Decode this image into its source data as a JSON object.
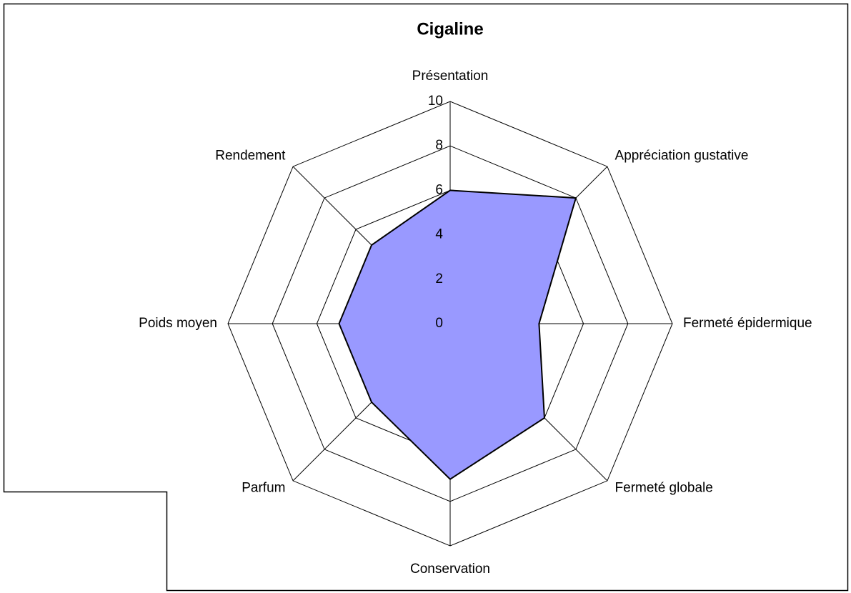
{
  "chart_data": {
    "type": "radar",
    "title": "Cigaline",
    "categories": [
      "Présentation",
      "Appréciation gustative",
      "Fermeté épidermique",
      "Fermeté globale",
      "Conservation",
      "Parfum",
      "Poids moyen",
      "Rendement"
    ],
    "values": [
      6,
      8,
      4,
      6,
      7,
      5,
      5,
      5
    ],
    "color": "#9999ff",
    "ylim": [
      0,
      10
    ],
    "yticks": [
      0,
      2,
      4,
      6,
      8,
      10
    ],
    "grid": true
  }
}
